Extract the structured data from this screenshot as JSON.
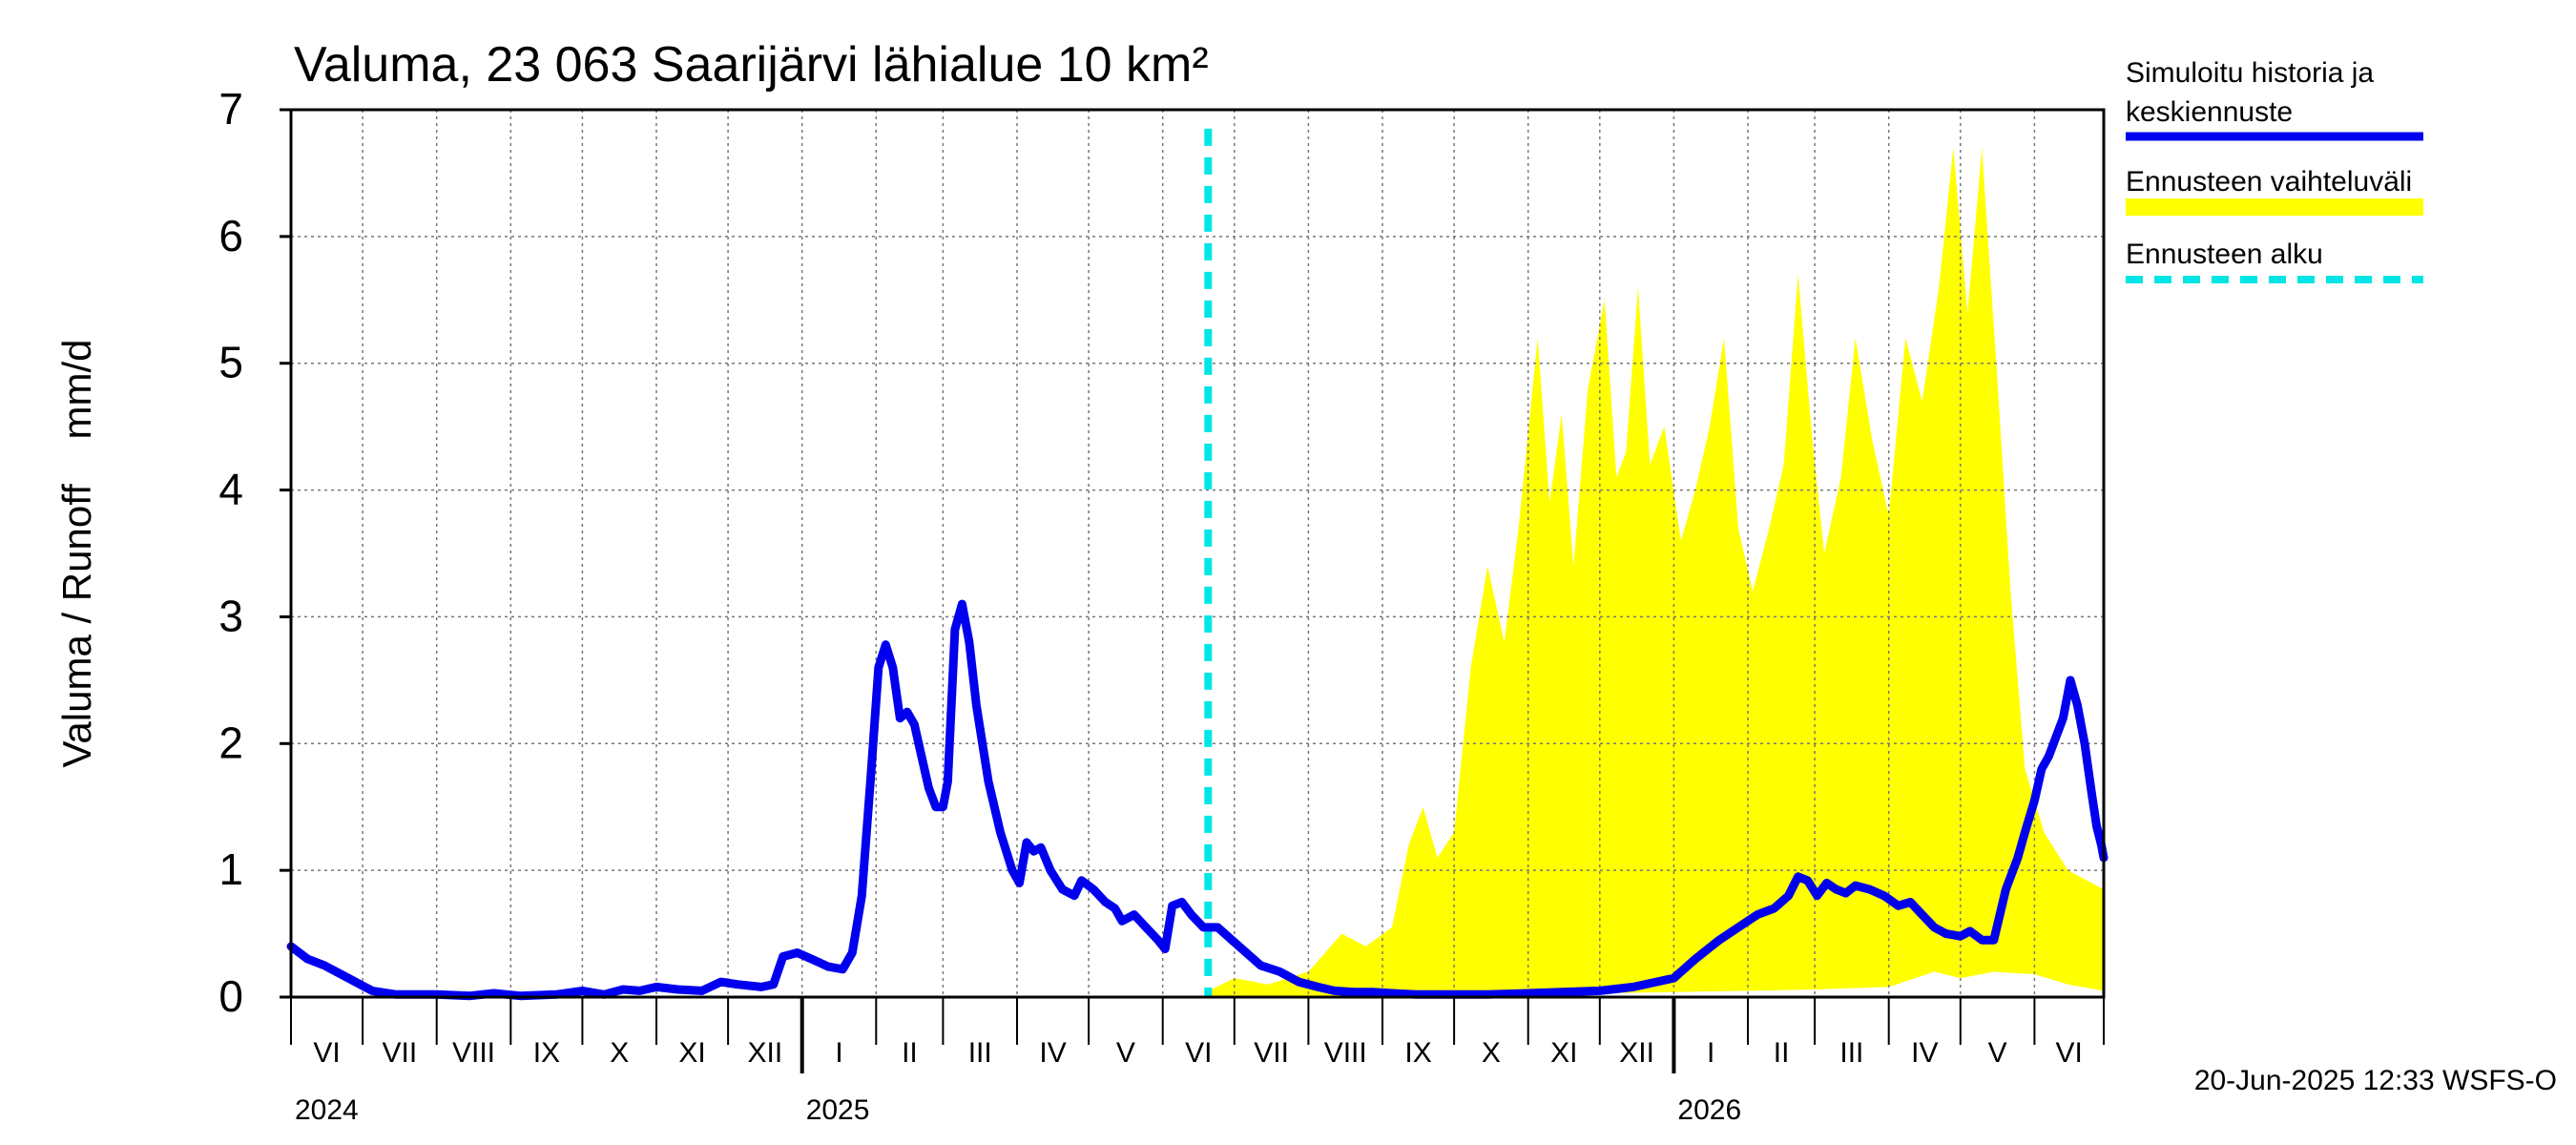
{
  "chart_data": {
    "type": "line",
    "title": "Valuma, 23 063 Saarijärvi lähialue 10 km²",
    "ylabel": "Valuma / Runoff    mm/d",
    "ylim": [
      0,
      7
    ],
    "yticks": [
      "0",
      "1",
      "2",
      "3",
      "4",
      "5",
      "6",
      "7"
    ],
    "xlim": [
      "2024-06-01",
      "2026-06-30"
    ],
    "month_labels": [
      "VI",
      "VII",
      "VIII",
      "IX",
      "X",
      "XI",
      "XII",
      "I",
      "II",
      "III",
      "IV",
      "V",
      "VI",
      "VII",
      "VIII",
      "IX",
      "X",
      "XI",
      "XII",
      "I",
      "II",
      "III",
      "IV",
      "V",
      "VI"
    ],
    "year_labels": [
      "2024",
      "2025",
      "2026"
    ],
    "grid": true,
    "legend_position": "right",
    "forecast_start": "2025-06-20",
    "timestamp": "20-Jun-2025 12:33 WSFS-O",
    "colors": {
      "history": "#0000ee",
      "range": "#ffff00",
      "forecast_start": "#00e5e5"
    },
    "series": [
      {
        "name": "Simuloitu historia ja keskiennuste",
        "kind": "line",
        "points": [
          [
            "2024-06-01",
            0.4
          ],
          [
            "2024-06-08",
            0.3
          ],
          [
            "2024-06-15",
            0.25
          ],
          [
            "2024-06-25",
            0.15
          ],
          [
            "2024-07-05",
            0.05
          ],
          [
            "2024-07-15",
            0.02
          ],
          [
            "2024-08-01",
            0.02
          ],
          [
            "2024-08-15",
            0.01
          ],
          [
            "2024-08-25",
            0.03
          ],
          [
            "2024-09-05",
            0.01
          ],
          [
            "2024-09-20",
            0.02
          ],
          [
            "2024-10-01",
            0.05
          ],
          [
            "2024-10-10",
            0.02
          ],
          [
            "2024-10-18",
            0.06
          ],
          [
            "2024-10-25",
            0.05
          ],
          [
            "2024-11-01",
            0.08
          ],
          [
            "2024-11-10",
            0.06
          ],
          [
            "2024-11-20",
            0.05
          ],
          [
            "2024-11-28",
            0.12
          ],
          [
            "2024-12-05",
            0.1
          ],
          [
            "2024-12-15",
            0.08
          ],
          [
            "2024-12-20",
            0.1
          ],
          [
            "2024-12-24",
            0.32
          ],
          [
            "2024-12-30",
            0.35
          ],
          [
            "2025-01-05",
            0.3
          ],
          [
            "2025-01-12",
            0.24
          ],
          [
            "2025-01-18",
            0.22
          ],
          [
            "2025-01-22",
            0.35
          ],
          [
            "2025-01-26",
            0.8
          ],
          [
            "2025-01-30",
            1.8
          ],
          [
            "2025-02-02",
            2.6
          ],
          [
            "2025-02-05",
            2.78
          ],
          [
            "2025-02-08",
            2.6
          ],
          [
            "2025-02-11",
            2.2
          ],
          [
            "2025-02-14",
            2.25
          ],
          [
            "2025-02-17",
            2.15
          ],
          [
            "2025-02-20",
            1.9
          ],
          [
            "2025-02-23",
            1.65
          ],
          [
            "2025-02-26",
            1.5
          ],
          [
            "2025-03-01",
            1.5
          ],
          [
            "2025-03-03",
            1.7
          ],
          [
            "2025-03-06",
            2.9
          ],
          [
            "2025-03-09",
            3.1
          ],
          [
            "2025-03-12",
            2.8
          ],
          [
            "2025-03-15",
            2.3
          ],
          [
            "2025-03-20",
            1.7
          ],
          [
            "2025-03-25",
            1.3
          ],
          [
            "2025-03-30",
            1.0
          ],
          [
            "2025-04-02",
            0.9
          ],
          [
            "2025-04-05",
            1.22
          ],
          [
            "2025-04-08",
            1.15
          ],
          [
            "2025-04-11",
            1.18
          ],
          [
            "2025-04-15",
            1.0
          ],
          [
            "2025-04-20",
            0.85
          ],
          [
            "2025-04-25",
            0.8
          ],
          [
            "2025-04-28",
            0.92
          ],
          [
            "2025-05-03",
            0.85
          ],
          [
            "2025-05-08",
            0.75
          ],
          [
            "2025-05-12",
            0.7
          ],
          [
            "2025-05-15",
            0.6
          ],
          [
            "2025-05-20",
            0.65
          ],
          [
            "2025-05-25",
            0.55
          ],
          [
            "2025-05-30",
            0.45
          ],
          [
            "2025-06-02",
            0.38
          ],
          [
            "2025-06-05",
            0.72
          ],
          [
            "2025-06-09",
            0.75
          ],
          [
            "2025-06-13",
            0.65
          ],
          [
            "2025-06-18",
            0.55
          ],
          [
            "2025-06-24",
            0.55
          ],
          [
            "2025-06-30",
            0.45
          ],
          [
            "2025-07-06",
            0.35
          ],
          [
            "2025-07-12",
            0.25
          ],
          [
            "2025-07-20",
            0.2
          ],
          [
            "2025-07-28",
            0.12
          ],
          [
            "2025-08-05",
            0.08
          ],
          [
            "2025-08-12",
            0.05
          ],
          [
            "2025-08-20",
            0.04
          ],
          [
            "2025-08-28",
            0.04
          ],
          [
            "2025-09-05",
            0.03
          ],
          [
            "2025-09-15",
            0.02
          ],
          [
            "2025-10-01",
            0.02
          ],
          [
            "2025-10-15",
            0.02
          ],
          [
            "2025-11-01",
            0.03
          ],
          [
            "2025-11-15",
            0.04
          ],
          [
            "2025-12-01",
            0.05
          ],
          [
            "2025-12-15",
            0.08
          ],
          [
            "2026-01-01",
            0.15
          ],
          [
            "2026-01-10",
            0.3
          ],
          [
            "2026-01-20",
            0.45
          ],
          [
            "2026-01-28",
            0.55
          ],
          [
            "2026-02-05",
            0.65
          ],
          [
            "2026-02-12",
            0.7
          ],
          [
            "2026-02-18",
            0.8
          ],
          [
            "2026-02-22",
            0.95
          ],
          [
            "2026-02-26",
            0.92
          ],
          [
            "2026-03-02",
            0.8
          ],
          [
            "2026-03-06",
            0.9
          ],
          [
            "2026-03-10",
            0.85
          ],
          [
            "2026-03-14",
            0.82
          ],
          [
            "2026-03-18",
            0.88
          ],
          [
            "2026-03-24",
            0.85
          ],
          [
            "2026-03-30",
            0.8
          ],
          [
            "2026-04-05",
            0.72
          ],
          [
            "2026-04-10",
            0.75
          ],
          [
            "2026-04-15",
            0.65
          ],
          [
            "2026-04-20",
            0.55
          ],
          [
            "2026-04-25",
            0.5
          ],
          [
            "2026-05-01",
            0.48
          ],
          [
            "2026-05-05",
            0.52
          ],
          [
            "2026-05-10",
            0.45
          ],
          [
            "2026-05-15",
            0.45
          ],
          [
            "2026-05-20",
            0.85
          ],
          [
            "2026-05-25",
            1.1
          ],
          [
            "2026-05-28",
            1.3
          ],
          [
            "2026-06-01",
            1.55
          ],
          [
            "2026-06-04",
            1.8
          ],
          [
            "2026-06-07",
            1.9
          ],
          [
            "2026-06-10",
            2.05
          ],
          [
            "2026-06-13",
            2.2
          ],
          [
            "2026-06-16",
            2.5
          ],
          [
            "2026-06-19",
            2.3
          ],
          [
            "2026-06-22",
            2.0
          ],
          [
            "2026-06-25",
            1.6
          ],
          [
            "2026-06-27",
            1.35
          ],
          [
            "2026-06-29",
            1.2
          ],
          [
            "2026-06-30",
            1.1
          ]
        ]
      },
      {
        "name": "Ennusteen vaihteluväli",
        "kind": "band",
        "upper": [
          [
            "2025-06-20",
            0.05
          ],
          [
            "2025-07-01",
            0.15
          ],
          [
            "2025-07-15",
            0.1
          ],
          [
            "2025-08-01",
            0.2
          ],
          [
            "2025-08-15",
            0.5
          ],
          [
            "2025-08-25",
            0.4
          ],
          [
            "2025-09-05",
            0.55
          ],
          [
            "2025-09-12",
            1.2
          ],
          [
            "2025-09-18",
            1.5
          ],
          [
            "2025-09-24",
            1.1
          ],
          [
            "2025-10-01",
            1.3
          ],
          [
            "2025-10-08",
            2.6
          ],
          [
            "2025-10-15",
            3.4
          ],
          [
            "2025-10-22",
            2.8
          ],
          [
            "2025-10-28",
            3.7
          ],
          [
            "2025-11-05",
            5.2
          ],
          [
            "2025-11-10",
            3.9
          ],
          [
            "2025-11-15",
            4.6
          ],
          [
            "2025-11-20",
            3.4
          ],
          [
            "2025-11-26",
            4.8
          ],
          [
            "2025-12-03",
            5.5
          ],
          [
            "2025-12-08",
            4.1
          ],
          [
            "2025-12-12",
            4.3
          ],
          [
            "2025-12-17",
            5.6
          ],
          [
            "2025-12-22",
            4.2
          ],
          [
            "2025-12-28",
            4.5
          ],
          [
            "2026-01-04",
            3.6
          ],
          [
            "2026-01-10",
            4.0
          ],
          [
            "2026-01-16",
            4.5
          ],
          [
            "2026-01-22",
            5.2
          ],
          [
            "2026-01-28",
            3.7
          ],
          [
            "2026-02-03",
            3.2
          ],
          [
            "2026-02-10",
            3.7
          ],
          [
            "2026-02-16",
            4.2
          ],
          [
            "2026-02-22",
            5.7
          ],
          [
            "2026-02-28",
            4.4
          ],
          [
            "2026-03-05",
            3.5
          ],
          [
            "2026-03-12",
            4.1
          ],
          [
            "2026-03-18",
            5.2
          ],
          [
            "2026-03-25",
            4.4
          ],
          [
            "2026-04-01",
            3.8
          ],
          [
            "2026-04-08",
            5.2
          ],
          [
            "2026-04-15",
            4.7
          ],
          [
            "2026-04-22",
            5.6
          ],
          [
            "2026-04-28",
            6.7
          ],
          [
            "2026-05-04",
            5.4
          ],
          [
            "2026-05-10",
            6.7
          ],
          [
            "2026-05-16",
            5.0
          ],
          [
            "2026-05-22",
            3.2
          ],
          [
            "2026-05-28",
            1.8
          ],
          [
            "2026-06-05",
            1.3
          ],
          [
            "2026-06-15",
            1.0
          ],
          [
            "2026-06-30",
            0.85
          ]
        ],
        "lower": [
          [
            "2025-06-20",
            0.0
          ],
          [
            "2025-09-01",
            0.0
          ],
          [
            "2025-10-01",
            0.01
          ],
          [
            "2025-11-01",
            0.02
          ],
          [
            "2025-12-01",
            0.03
          ],
          [
            "2026-01-01",
            0.04
          ],
          [
            "2026-02-01",
            0.05
          ],
          [
            "2026-03-01",
            0.06
          ],
          [
            "2026-04-01",
            0.08
          ],
          [
            "2026-04-20",
            0.2
          ],
          [
            "2026-05-01",
            0.15
          ],
          [
            "2026-05-15",
            0.2
          ],
          [
            "2026-06-01",
            0.18
          ],
          [
            "2026-06-15",
            0.1
          ],
          [
            "2026-06-30",
            0.05
          ]
        ]
      },
      {
        "name": "Ennusteen alku",
        "kind": "vline"
      }
    ]
  }
}
